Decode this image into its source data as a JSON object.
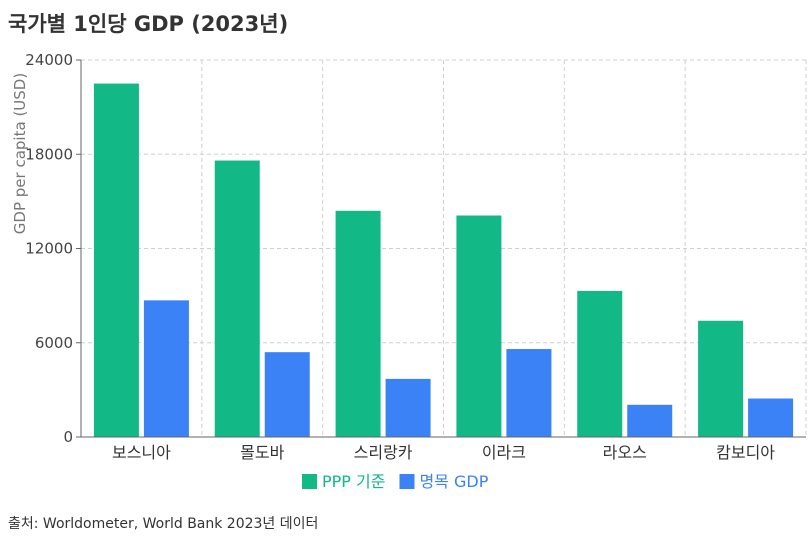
{
  "title": "국가별 1인당 GDP (2023년)",
  "source": "출처: Worldometer, World Bank 2023년 데이터",
  "chart_data": {
    "type": "bar",
    "title": "국가별 1인당 GDP (2023년)",
    "xlabel": "",
    "ylabel": "GDP per capita (USD)",
    "ylim": [
      0,
      24000
    ],
    "yticks": [
      0,
      6000,
      12000,
      18000,
      24000
    ],
    "grid": true,
    "legend_position": "bottom",
    "categories": [
      "보스니아",
      "몰도바",
      "스리랑카",
      "이라크",
      "라오스",
      "캄보디아"
    ],
    "series": [
      {
        "name": "PPP 기준",
        "color": "#12b886",
        "values": [
          22500,
          17600,
          14400,
          14100,
          9300,
          7400
        ]
      },
      {
        "name": "명목 GDP",
        "color": "#3b82f6",
        "values": [
          8700,
          5400,
          3700,
          5600,
          2050,
          2450
        ]
      }
    ]
  }
}
